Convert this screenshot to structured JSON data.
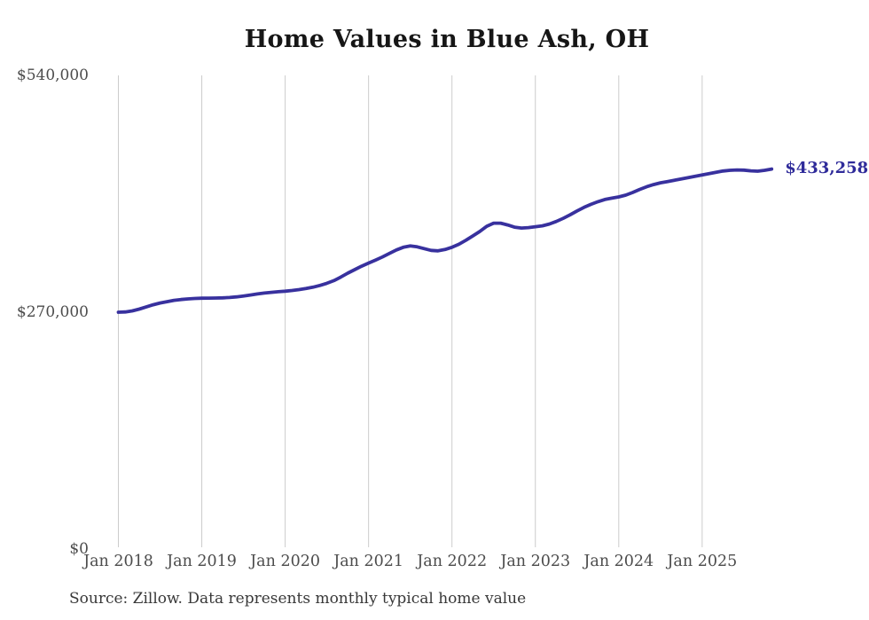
{
  "chart_data": {
    "type": "line",
    "title": "Home Values in Blue Ash, OH",
    "source_note": "Source: Zillow. Data represents monthly typical home value",
    "series_name": "Monthly typical home value",
    "end_label": "$433,258",
    "end_value": 433258,
    "ylim": [
      0,
      540000
    ],
    "y_tick_values": [
      0,
      270000,
      540000
    ],
    "y_tick_labels": [
      "$0",
      "$270,000",
      "$540,000"
    ],
    "x_tick_labels": [
      "Jan 2018",
      "Jan 2019",
      "Jan 2020",
      "Jan 2021",
      "Jan 2022",
      "Jan 2023",
      "Jan 2024",
      "Jan 2025"
    ],
    "grid": "vertical-only",
    "legend": "none",
    "months": [
      "Jan 2018",
      "Feb 2018",
      "Mar 2018",
      "Apr 2018",
      "May 2018",
      "Jun 2018",
      "Jul 2018",
      "Aug 2018",
      "Sep 2018",
      "Oct 2018",
      "Nov 2018",
      "Dec 2018",
      "Jan 2019",
      "Feb 2019",
      "Mar 2019",
      "Apr 2019",
      "May 2019",
      "Jun 2019",
      "Jul 2019",
      "Aug 2019",
      "Sep 2019",
      "Oct 2019",
      "Nov 2019",
      "Dec 2019",
      "Jan 2020",
      "Feb 2020",
      "Mar 2020",
      "Apr 2020",
      "May 2020",
      "Jun 2020",
      "Jul 2020",
      "Aug 2020",
      "Sep 2020",
      "Oct 2020",
      "Nov 2020",
      "Dec 2020",
      "Jan 2021",
      "Feb 2021",
      "Mar 2021",
      "Apr 2021",
      "May 2021",
      "Jun 2021",
      "Jul 2021",
      "Aug 2021",
      "Sep 2021",
      "Oct 2021",
      "Nov 2021",
      "Dec 2021",
      "Jan 2022",
      "Feb 2022",
      "Mar 2022",
      "Apr 2022",
      "May 2022",
      "Jun 2022",
      "Jul 2022",
      "Aug 2022",
      "Sep 2022",
      "Oct 2022",
      "Nov 2022",
      "Dec 2022",
      "Jan 2023",
      "Feb 2023",
      "Mar 2023",
      "Apr 2023",
      "May 2023",
      "Jun 2023",
      "Jul 2023",
      "Aug 2023",
      "Sep 2023",
      "Oct 2023",
      "Nov 2023",
      "Dec 2023",
      "Jan 2024",
      "Feb 2024",
      "Mar 2024",
      "Apr 2024",
      "May 2024",
      "Jun 2024",
      "Jul 2024",
      "Aug 2024",
      "Sep 2024",
      "Oct 2024",
      "Nov 2024",
      "Dec 2024",
      "Jan 2025",
      "Feb 2025",
      "Mar 2025",
      "Apr 2025",
      "May 2025",
      "Jun 2025",
      "Jul 2025",
      "Aug 2025",
      "Sep 2025",
      "Oct 2025",
      "Nov 2025"
    ],
    "values": [
      270000,
      270300,
      271500,
      273500,
      276000,
      278500,
      280500,
      282000,
      283500,
      284500,
      285200,
      285700,
      286000,
      286100,
      286200,
      286400,
      286800,
      287500,
      288500,
      289600,
      290800,
      291800,
      292700,
      293400,
      294000,
      294800,
      295800,
      297000,
      298500,
      300500,
      303000,
      306000,
      310000,
      314500,
      318500,
      322500,
      326000,
      329500,
      333000,
      337000,
      341000,
      344000,
      345500,
      344500,
      342500,
      340500,
      340000,
      341500,
      344000,
      347500,
      352000,
      357000,
      362000,
      368000,
      371500,
      371500,
      369500,
      367000,
      366000,
      366500,
      367500,
      368500,
      370500,
      373500,
      377000,
      381000,
      385500,
      389500,
      393000,
      396000,
      398500,
      400000,
      401500,
      403500,
      406500,
      410000,
      413000,
      415500,
      417500,
      419000,
      420500,
      422000,
      423500,
      425000,
      426500,
      428000,
      429500,
      431000,
      431800,
      432200,
      432000,
      431200,
      430800,
      431800,
      433258
    ]
  },
  "colors": {
    "background": "#ffffff",
    "line": "#38319e",
    "end_label": "#2f2b9a",
    "gridline": "#cccccc",
    "title": "#161616",
    "axis_label": "#4c4c4c",
    "source": "#383838"
  }
}
